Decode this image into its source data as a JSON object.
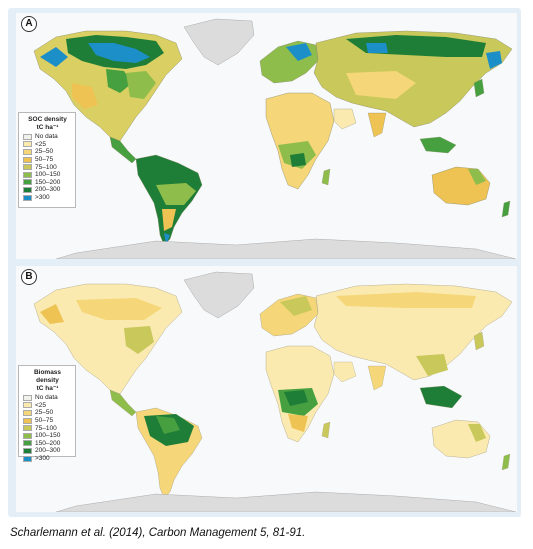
{
  "panels": [
    {
      "label": "A",
      "legend_title": "SOC density",
      "legend_unit": "tC ha⁻¹",
      "legend": [
        {
          "label": "No data",
          "color": "#f2f2ec"
        },
        {
          "label": "<25",
          "color": "#fbeab0"
        },
        {
          "label": "25–50",
          "color": "#f5d678"
        },
        {
          "label": "50–75",
          "color": "#eec354"
        },
        {
          "label": "75–100",
          "color": "#c9c85a"
        },
        {
          "label": "100–150",
          "color": "#8fbd4c"
        },
        {
          "label": "150–200",
          "color": "#47a040"
        },
        {
          "label": "200–300",
          "color": "#1e7d36"
        },
        {
          "label": ">300",
          "color": "#1d8fc8"
        }
      ]
    },
    {
      "label": "B",
      "legend_title": "Biomass density",
      "legend_unit": "tC ha⁻¹",
      "legend": [
        {
          "label": "No data",
          "color": "#f2f2ec"
        },
        {
          "label": "<25",
          "color": "#fbeab0"
        },
        {
          "label": "25–50",
          "color": "#f5d678"
        },
        {
          "label": "50–75",
          "color": "#eec354"
        },
        {
          "label": "75–100",
          "color": "#c9c85a"
        },
        {
          "label": "100–150",
          "color": "#8fbd4c"
        },
        {
          "label": "150–200",
          "color": "#47a040"
        },
        {
          "label": "200–300",
          "color": "#1e7d36"
        },
        {
          "label": ">300",
          "color": "#1d8fc8"
        }
      ]
    }
  ],
  "caption": "Scharlemann et al. (2014), Carbon Management 5, 81-91."
}
